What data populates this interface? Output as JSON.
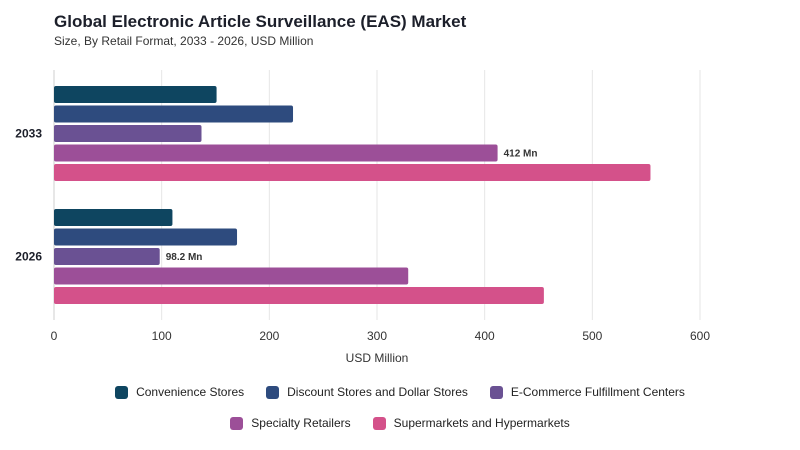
{
  "title": "Global Electronic Article Surveillance (EAS) Market",
  "subtitle": "Size, By Retail Format, 2033 - 2026, USD Million",
  "chart_data": {
    "type": "bar",
    "orientation": "horizontal",
    "categories": [
      "2033",
      "2026"
    ],
    "xlabel": "USD Million",
    "xlim": [
      0,
      600
    ],
    "xticks": [
      0,
      100,
      200,
      300,
      400,
      500,
      600
    ],
    "grid": true,
    "legend_position": "bottom",
    "series": [
      {
        "name": "Convenience Stores",
        "color": "#0e4560",
        "values": [
          151,
          110
        ]
      },
      {
        "name": "Discount Stores and Dollar Stores",
        "color": "#2e4b7e",
        "values": [
          222,
          170
        ]
      },
      {
        "name": "E-Commerce Fulfillment Centers",
        "color": "#6a5193",
        "values": [
          137,
          98.2
        ]
      },
      {
        "name": "Specialty Retailers",
        "color": "#9c4f98",
        "values": [
          412,
          329
        ]
      },
      {
        "name": "Supermarkets and Hypermarkets",
        "color": "#d4518a",
        "values": [
          554,
          455
        ]
      }
    ],
    "annotations": [
      {
        "category": "2033",
        "series": "Specialty Retailers",
        "text": "412 Mn"
      },
      {
        "category": "2026",
        "series": "E-Commerce Fulfillment Centers",
        "text": "98.2 Mn"
      }
    ]
  }
}
